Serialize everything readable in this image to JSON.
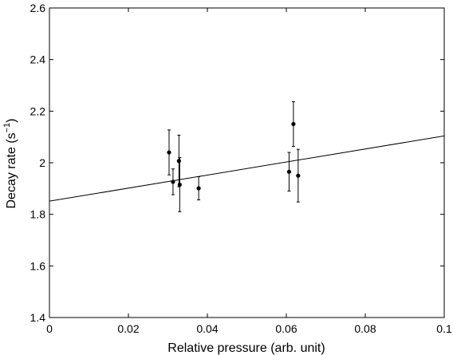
{
  "chart_data": {
    "type": "scatter",
    "xlabel": "Relative pressure (arb. unit)",
    "ylabel_main": "Decay rate (s",
    "ylabel_sup": "−1",
    "ylabel_close": ")",
    "xlim": [
      0,
      0.1
    ],
    "ylim": [
      1.4,
      2.6
    ],
    "xticks": [
      0,
      0.02,
      0.04,
      0.06,
      0.08,
      0.1
    ],
    "xtick_labels": [
      "0",
      "0.02",
      "0.04",
      "0.06",
      "0.08",
      "0.1"
    ],
    "yticks": [
      1.4,
      1.6,
      1.8,
      2.0,
      2.2,
      2.4,
      2.6
    ],
    "ytick_labels": [
      "1.4",
      "1.6",
      "1.8",
      "2",
      "2.2",
      "2.4",
      "2.6"
    ],
    "grid": false,
    "points": [
      {
        "x": 0.0303,
        "y": 2.04,
        "err": 0.087
      },
      {
        "x": 0.0313,
        "y": 1.926,
        "err": 0.05
      },
      {
        "x": 0.0328,
        "y": 2.007,
        "err": 0.1
      },
      {
        "x": 0.033,
        "y": 1.915,
        "err": 0.105
      },
      {
        "x": 0.0378,
        "y": 1.901,
        "err": 0.045
      },
      {
        "x": 0.0607,
        "y": 1.965,
        "err": 0.075
      },
      {
        "x": 0.0618,
        "y": 2.15,
        "err": 0.087
      },
      {
        "x": 0.063,
        "y": 1.95,
        "err": 0.102
      }
    ],
    "fit_line": {
      "x": [
        0,
        0.1
      ],
      "y": [
        1.851,
        2.104
      ]
    }
  }
}
